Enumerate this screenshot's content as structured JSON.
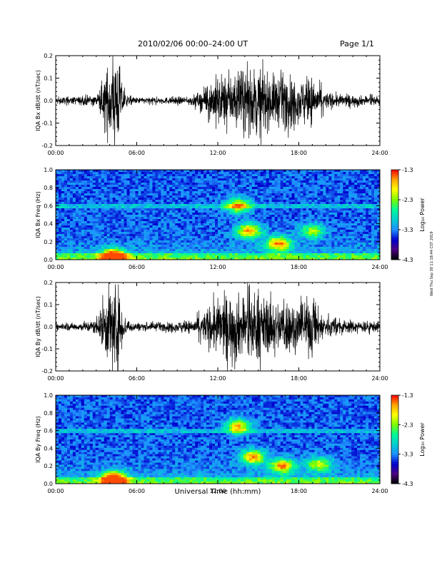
{
  "header": {
    "title": "2010/02/06  00:00–24:00 UT",
    "page": "Page 1/1"
  },
  "side_note": "Wed Thu Sep 30 11:18:44 CST 2019",
  "colorbar": {
    "label": "Log₁₀ Power",
    "ticks": [
      "-1.3",
      "-2.3",
      "-3.3",
      "-4.3"
    ],
    "colors": [
      "#000000",
      "#4b0082",
      "#0000cd",
      "#1e90ff",
      "#00ced1",
      "#00fa9a",
      "#7cfc00",
      "#ffff00",
      "#ffa500",
      "#ff0000"
    ]
  },
  "xlabel": "Universal Time (hh:mm)",
  "chart_data": [
    {
      "type": "line",
      "ylabel": "IQA Bx dB/dt (nT/sec)",
      "x_ticks": [
        "00:00",
        "06:00",
        "12:00",
        "18:00",
        "24:00"
      ],
      "y_ticks": [
        "0.2",
        "0.1",
        "0.0",
        "-0.1",
        "-0.2"
      ],
      "xlim": [
        0,
        24
      ],
      "ylim": [
        -0.2,
        0.2
      ],
      "envelope": {
        "x": [
          0,
          2,
          3.2,
          3.5,
          3.8,
          4.1,
          4.4,
          4.7,
          5.0,
          5.3,
          6,
          8,
          10,
          10.5,
          11,
          11.6,
          12,
          13,
          13.5,
          14,
          14.5,
          15,
          15.5,
          16,
          16.5,
          17,
          17.5,
          18,
          18.5,
          19,
          19.5,
          20,
          21,
          22,
          24
        ],
        "amplitude": [
          0.015,
          0.02,
          0.03,
          0.1,
          0.15,
          0.22,
          0.22,
          0.18,
          0.06,
          0.025,
          0.015,
          0.015,
          0.02,
          0.035,
          0.05,
          0.1,
          0.12,
          0.12,
          0.13,
          0.15,
          0.14,
          0.16,
          0.13,
          0.12,
          0.12,
          0.13,
          0.11,
          0.1,
          0.1,
          0.11,
          0.07,
          0.04,
          0.03,
          0.025,
          0.02
        ]
      }
    },
    {
      "type": "heatmap",
      "ylabel": "IQA Bx Freq (Hz)",
      "x_ticks": [
        "00:00",
        "06:00",
        "12:00",
        "18:00",
        "24:00"
      ],
      "y_ticks": [
        "1.0",
        "0.8",
        "0.6",
        "0.4",
        "0.2",
        "0.0"
      ],
      "xlim": [
        0,
        24
      ],
      "ylim": [
        0,
        1.0
      ],
      "zlim": [
        -4.3,
        -1.3
      ],
      "features": [
        {
          "t": 13.5,
          "f": 0.6,
          "level": 0.55
        },
        {
          "t": 14.3,
          "f": 0.32,
          "level": 0.6
        },
        {
          "t": 16.5,
          "f": 0.18,
          "level": 0.6
        },
        {
          "t": 19.0,
          "f": 0.32,
          "level": 0.4
        },
        {
          "t": 4.3,
          "f": 0.03,
          "level": 0.9
        }
      ],
      "line_at": 0.6
    },
    {
      "type": "line",
      "ylabel": "IQA By dB/dt (nT/sec)",
      "x_ticks": [
        "00:00",
        "06:00",
        "12:00",
        "18:00",
        "24:00"
      ],
      "y_ticks": [
        "0.2",
        "0.1",
        "0.0",
        "-0.1",
        "-0.2"
      ],
      "xlim": [
        0,
        24
      ],
      "ylim": [
        -0.2,
        0.2
      ],
      "envelope": {
        "x": [
          0,
          2,
          3.2,
          3.5,
          3.8,
          4.1,
          4.4,
          4.7,
          5.0,
          5.3,
          6,
          8,
          10,
          10.5,
          11,
          11.6,
          12,
          13,
          13.5,
          14,
          14.5,
          15,
          15.5,
          16,
          16.5,
          17,
          17.5,
          18,
          18.5,
          19,
          19.5,
          20,
          21,
          22,
          24
        ],
        "amplitude": [
          0.015,
          0.02,
          0.04,
          0.12,
          0.16,
          0.22,
          0.22,
          0.18,
          0.07,
          0.03,
          0.02,
          0.02,
          0.03,
          0.05,
          0.07,
          0.12,
          0.13,
          0.15,
          0.15,
          0.15,
          0.14,
          0.16,
          0.13,
          0.13,
          0.12,
          0.14,
          0.12,
          0.11,
          0.12,
          0.15,
          0.08,
          0.05,
          0.035,
          0.03,
          0.025
        ]
      }
    },
    {
      "type": "heatmap",
      "ylabel": "IQA By Freq (Hz)",
      "x_ticks": [
        "00:00",
        "06:00",
        "12:00",
        "18:00",
        "24:00"
      ],
      "y_ticks": [
        "1.0",
        "0.8",
        "0.6",
        "0.4",
        "0.2",
        "0.0"
      ],
      "xlim": [
        0,
        24
      ],
      "ylim": [
        0,
        1.0
      ],
      "zlim": [
        -4.3,
        -1.3
      ],
      "features": [
        {
          "t": 13.5,
          "f": 0.65,
          "level": 0.55
        },
        {
          "t": 14.6,
          "f": 0.3,
          "level": 0.6
        },
        {
          "t": 16.8,
          "f": 0.2,
          "level": 0.6
        },
        {
          "t": 19.5,
          "f": 0.22,
          "level": 0.45
        },
        {
          "t": 4.3,
          "f": 0.05,
          "level": 0.9
        }
      ],
      "line_at": 0.6
    }
  ]
}
